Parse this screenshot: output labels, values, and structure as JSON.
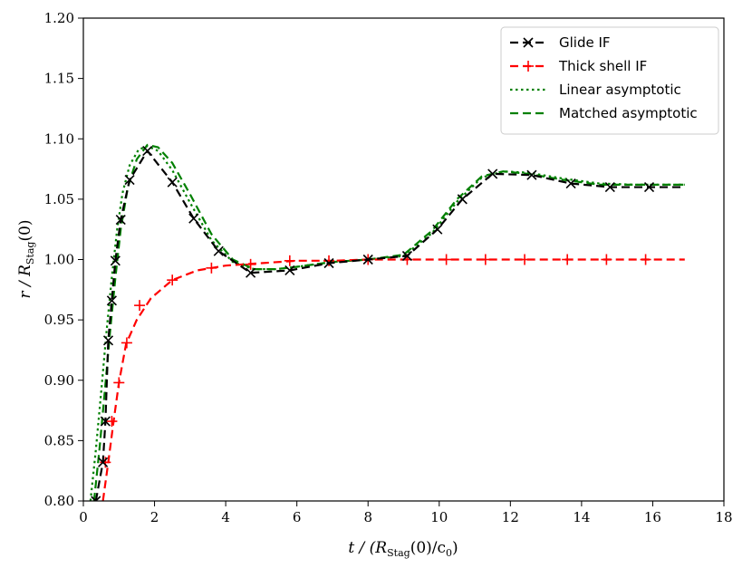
{
  "chart_data": {
    "type": "line",
    "xlabel": "t / (R_Stag(0)/c_0)",
    "ylabel": "r / R_Stag(0)",
    "xlim": [
      0,
      18
    ],
    "ylim": [
      0.8,
      1.2
    ],
    "xticks": [
      0,
      2,
      4,
      6,
      8,
      10,
      12,
      14,
      16,
      18
    ],
    "yticks": [
      0.8,
      0.85,
      0.9,
      0.95,
      1.0,
      1.05,
      1.1,
      1.15,
      1.2
    ],
    "grid": false,
    "legend_position": "top-right",
    "series": [
      {
        "name": "Glide IF",
        "color": "#000000",
        "style": "dashed",
        "marker": "x",
        "x": [
          0.35,
          0.55,
          0.62,
          0.7,
          0.8,
          0.9,
          1.05,
          1.3,
          1.8,
          2.5,
          3.1,
          3.8,
          4.7,
          5.8,
          6.9,
          8.0,
          9.1,
          9.95,
          10.65,
          11.5,
          12.6,
          13.7,
          14.8,
          15.9,
          16.9
        ],
        "y": [
          0.8,
          0.832,
          0.866,
          0.933,
          0.966,
          0.999,
          1.033,
          1.066,
          1.09,
          1.064,
          1.034,
          1.007,
          0.989,
          0.991,
          0.997,
          1.0,
          1.003,
          1.025,
          1.05,
          1.071,
          1.07,
          1.063,
          1.06,
          1.06,
          1.06
        ],
        "marker_x": [
          0.35,
          0.55,
          0.62,
          0.7,
          0.8,
          0.9,
          1.05,
          1.3,
          1.8,
          2.5,
          3.1,
          3.8,
          4.7,
          5.8,
          6.9,
          8.0,
          9.1,
          9.95,
          10.65,
          11.5,
          12.6,
          13.7,
          14.8,
          15.9
        ],
        "marker_y": [
          0.8,
          0.832,
          0.866,
          0.933,
          0.966,
          0.999,
          1.033,
          1.066,
          1.09,
          1.064,
          1.034,
          1.007,
          0.989,
          0.991,
          0.997,
          1.0,
          1.003,
          1.025,
          1.05,
          1.071,
          1.07,
          1.063,
          1.06,
          1.06
        ]
      },
      {
        "name": "Thick shell IF",
        "color": "#ff0000",
        "style": "dashed",
        "marker": "+",
        "x": [
          0.55,
          0.7,
          0.85,
          1.0,
          1.2,
          1.5,
          1.9,
          2.5,
          3.2,
          4.0,
          5.0,
          6.0,
          7.0,
          8.0,
          9.0,
          10.0,
          12.0,
          14.0,
          16.0,
          16.9
        ],
        "y": [
          0.8,
          0.832,
          0.866,
          0.898,
          0.93,
          0.95,
          0.968,
          0.983,
          0.991,
          0.995,
          0.997,
          0.999,
          0.999,
          1.0,
          1.0,
          1.0,
          1.0,
          1.0,
          1.0,
          1.0
        ],
        "marker_x": [
          0.62,
          0.8,
          1.0,
          1.22,
          1.58,
          2.5,
          3.6,
          4.7,
          5.8,
          6.9,
          8.0,
          9.1,
          10.2,
          11.3,
          12.4,
          13.6,
          14.7,
          15.8
        ],
        "marker_y": [
          0.832,
          0.866,
          0.898,
          0.931,
          0.962,
          0.983,
          0.993,
          0.996,
          0.999,
          0.999,
          1.0,
          1.0,
          1.0,
          1.0,
          1.0,
          1.0,
          1.0,
          1.0
        ]
      },
      {
        "name": "Linear asymptotic",
        "color": "#008000",
        "style": "dotted",
        "marker": "none",
        "x": [
          0.2,
          0.35,
          0.5,
          0.65,
          0.8,
          0.95,
          1.1,
          1.3,
          1.55,
          1.8,
          2.1,
          2.5,
          3.0,
          3.6,
          4.2,
          4.8,
          5.4,
          6.0,
          7.0,
          8.0,
          9.0,
          9.8,
          10.5,
          11.2,
          11.8,
          12.5,
          13.5,
          14.5,
          15.5,
          16.9
        ],
        "y": [
          0.8,
          0.842,
          0.89,
          0.94,
          0.985,
          1.025,
          1.055,
          1.078,
          1.091,
          1.094,
          1.09,
          1.074,
          1.047,
          1.016,
          0.998,
          0.992,
          0.992,
          0.994,
          0.998,
          1.0,
          1.003,
          1.022,
          1.048,
          1.068,
          1.073,
          1.072,
          1.067,
          1.063,
          1.062,
          1.062
        ]
      },
      {
        "name": "Matched asymptotic",
        "color": "#008000",
        "style": "dashed",
        "marker": "none",
        "x": [
          0.3,
          0.45,
          0.6,
          0.75,
          0.9,
          1.05,
          1.25,
          1.5,
          1.8,
          2.1,
          2.5,
          3.0,
          3.6,
          4.2,
          4.8,
          5.4,
          6.0,
          7.0,
          8.0,
          9.0,
          9.8,
          10.5,
          11.2,
          11.8,
          12.5,
          13.5,
          14.5,
          15.5,
          16.9
        ],
        "y": [
          0.8,
          0.842,
          0.89,
          0.94,
          0.985,
          1.025,
          1.06,
          1.083,
          1.095,
          1.093,
          1.08,
          1.054,
          1.021,
          1.0,
          0.992,
          0.992,
          0.994,
          0.998,
          1.0,
          1.004,
          1.024,
          1.05,
          1.069,
          1.073,
          1.071,
          1.066,
          1.062,
          1.062,
          1.062
        ]
      }
    ]
  }
}
